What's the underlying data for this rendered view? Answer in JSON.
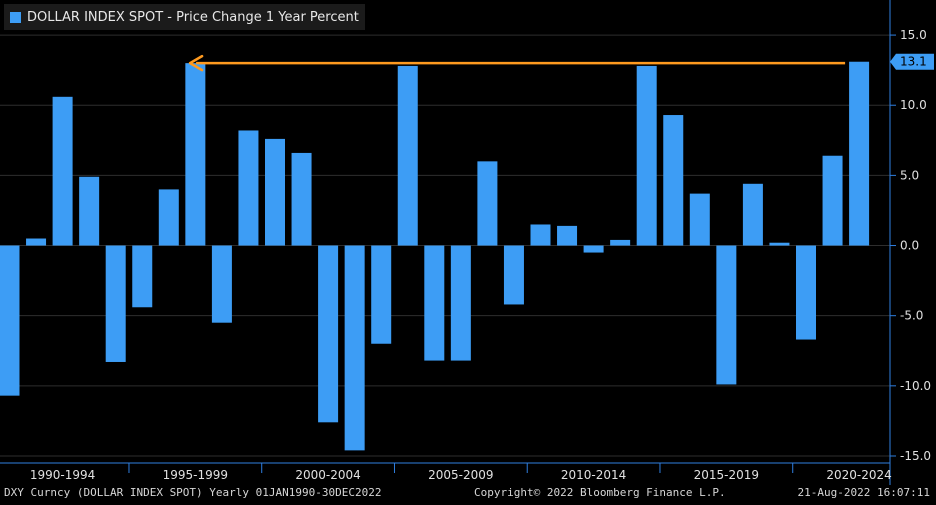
{
  "chart_data": {
    "type": "bar",
    "title": "DOLLAR INDEX SPOT - Price Change 1 Year Percent",
    "series": [
      {
        "name": "DOLLAR INDEX SPOT - Price Change 1 Year Percent",
        "color": "#3d9df5",
        "x": [
          1990,
          1991,
          1992,
          1993,
          1994,
          1995,
          1996,
          1997,
          1998,
          1999,
          2000,
          2001,
          2002,
          2003,
          2004,
          2005,
          2006,
          2007,
          2008,
          2009,
          2010,
          2011,
          2012,
          2013,
          2014,
          2015,
          2016,
          2017,
          2018,
          2019,
          2020,
          2021,
          2022
        ],
        "values": [
          -10.7,
          0.5,
          10.6,
          4.9,
          -8.3,
          -4.4,
          4.0,
          13.0,
          -5.5,
          8.2,
          7.6,
          6.6,
          -12.6,
          -14.6,
          -7.0,
          12.8,
          -8.2,
          -8.2,
          6.0,
          -4.2,
          1.5,
          1.4,
          -0.5,
          0.4,
          12.8,
          9.3,
          3.7,
          -9.9,
          4.4,
          0.2,
          -6.7,
          6.4,
          13.1
        ]
      }
    ],
    "y_axis": {
      "position": "right",
      "ylim": [
        -15.5,
        17.5
      ],
      "ticks": [
        15.0,
        10.0,
        5.0,
        0.0,
        -5.0,
        -10.0,
        -15.0
      ],
      "tick_labels": [
        "15.0",
        "10.0",
        "5.0",
        "0.0",
        "-5.0",
        "-10.0",
        "-15.0"
      ]
    },
    "x_axis": {
      "groups": [
        {
          "label": "1990-1994",
          "start": 1990,
          "end": 1994
        },
        {
          "label": "1995-1999",
          "start": 1995,
          "end": 1999
        },
        {
          "label": "2000-2004",
          "start": 2000,
          "end": 2004
        },
        {
          "label": "2005-2009",
          "start": 2005,
          "end": 2009
        },
        {
          "label": "2010-2014",
          "start": 2010,
          "end": 2014
        },
        {
          "label": "2015-2019",
          "start": 2015,
          "end": 2019
        },
        {
          "label": "2020-2024",
          "start": 2020,
          "end": 2024
        }
      ]
    },
    "last_value_label": "13.1",
    "annotation": {
      "type": "arrow",
      "color": "#ff9a1f",
      "level": 13.0,
      "from_year": 2022,
      "to_year": 1996.5
    },
    "gridlines": true,
    "colors": {
      "background": "#000000",
      "grid": "#2e2e2e",
      "axis": "#2f7fe0",
      "tick_text": "#e0e0e0",
      "label_bg": "#3d9df5"
    }
  },
  "footer": {
    "left": "DXY Curncy (DOLLAR INDEX SPOT)  Yearly 01JAN1990-30DEC2022",
    "middle": "Copyright© 2022 Bloomberg Finance L.P.",
    "right": "21-Aug-2022 16:07:11"
  }
}
